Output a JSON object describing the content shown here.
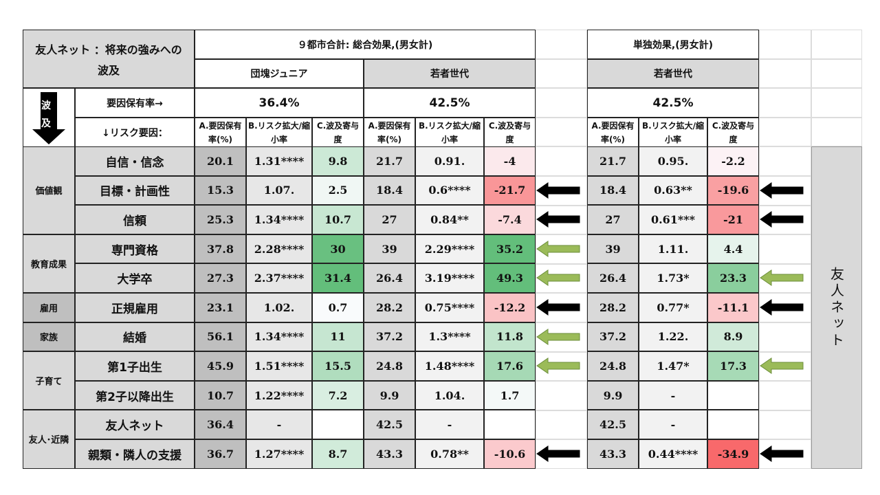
{
  "title": "友人ネット ：将来の強みへの波及",
  "headers": {
    "total_effect": "９都市合計: 総合効果,(男女計)",
    "single_effect": "単独効果,(男女計)",
    "junior": "団塊ジュニア",
    "young": "若者世代",
    "young_single": "若者世代"
  },
  "side_label_left_chars": [
    "波",
    "及"
  ],
  "factor_rate_label": "要因保有率→",
  "risk_factor_label": "↓リスク要因：",
  "rates": {
    "junior": "36.4%",
    "young": "42.5%",
    "young_single": "42.5%"
  },
  "col_headers": {
    "a": "A.要因保有率(%)",
    "b": "B.リスク拡大/縮小率",
    "c": "C.波及寄与度"
  },
  "groups": [
    {
      "label": "価値観"
    },
    {
      "label": "教育成果"
    },
    {
      "label": "雇用"
    },
    {
      "label": "家族"
    },
    {
      "label": "子育て"
    },
    {
      "label": "友人･近隣"
    }
  ],
  "rows": [
    {
      "factor": "自信・信念",
      "j_a": "20.1",
      "j_b": "1.31****",
      "j_c": "9.8",
      "y_a": "21.7",
      "y_b": "0.91.",
      "y_c": "-4",
      "s_a": "21.7",
      "s_b": "0.95.",
      "s_c": "-2.2"
    },
    {
      "factor": "目標・計画性",
      "j_a": "15.3",
      "j_b": "1.07.",
      "j_c": "2.5",
      "y_a": "18.4",
      "y_b": "0.6****",
      "y_c": "-21.7",
      "s_a": "18.4",
      "s_b": "0.63**",
      "s_c": "-19.6"
    },
    {
      "factor": "信頼",
      "j_a": "25.3",
      "j_b": "1.34****",
      "j_c": "10.7",
      "y_a": "27",
      "y_b": "0.84**",
      "y_c": "-7.4",
      "s_a": "27",
      "s_b": "0.61***",
      "s_c": "-21"
    },
    {
      "factor": "専門資格",
      "j_a": "37.8",
      "j_b": "2.28****",
      "j_c": "30",
      "y_a": "39",
      "y_b": "2.29****",
      "y_c": "35.2",
      "s_a": "39",
      "s_b": "1.11.",
      "s_c": "4.4"
    },
    {
      "factor": "大学卒",
      "j_a": "27.3",
      "j_b": "2.37****",
      "j_c": "31.4",
      "y_a": "26.4",
      "y_b": "3.19****",
      "y_c": "49.3",
      "s_a": "26.4",
      "s_b": "1.73*",
      "s_c": "23.3"
    },
    {
      "factor": "正規雇用",
      "j_a": "23.1",
      "j_b": "1.02.",
      "j_c": "0.7",
      "y_a": "28.2",
      "y_b": "0.75****",
      "y_c": "-12.2",
      "s_a": "28.2",
      "s_b": "0.77*",
      "s_c": "-11.1"
    },
    {
      "factor": "結婚",
      "j_a": "56.1",
      "j_b": "1.34****",
      "j_c": "11",
      "y_a": "37.2",
      "y_b": "1.3****",
      "y_c": "11.8",
      "s_a": "37.2",
      "s_b": "1.22.",
      "s_c": "8.9"
    },
    {
      "factor": "第1子出生",
      "j_a": "45.9",
      "j_b": "1.51****",
      "j_c": "15.5",
      "y_a": "24.8",
      "y_b": "1.48****",
      "y_c": "17.6",
      "s_a": "24.8",
      "s_b": "1.47*",
      "s_c": "17.3"
    },
    {
      "factor": "第2子以降出生",
      "j_a": "10.7",
      "j_b": "1.22****",
      "j_c": "7.2",
      "y_a": "9.9",
      "y_b": "1.04.",
      "y_c": "1.7",
      "s_a": "9.9",
      "s_b": "-",
      "s_c": ""
    },
    {
      "factor": "友人ネット",
      "j_a": "36.4",
      "j_b": "-",
      "j_c": "",
      "y_a": "42.5",
      "y_b": "-",
      "y_c": "",
      "s_a": "42.5",
      "s_b": "-",
      "s_c": ""
    },
    {
      "factor": "親類・隣人の支援",
      "j_a": "36.7",
      "j_b": "1.27****",
      "j_c": "8.7",
      "y_a": "43.3",
      "y_b": "0.78**",
      "y_c": "-10.6",
      "s_a": "43.3",
      "s_b": "0.44****",
      "s_c": "-34.9"
    }
  ],
  "colors": {
    "header_gray": "#d9d9d9",
    "a_col_dark": "#bfbfbf",
    "arrow_black": "#000000",
    "arrow_green": "#9bbb59",
    "neg_red": "#f8696b",
    "pos_green": "#63be7b"
  },
  "arrows_mid": [
    "",
    "black",
    "black",
    "green",
    "green",
    "black",
    "green",
    "green",
    "",
    "",
    "black"
  ],
  "arrows_right": [
    "",
    "black",
    "black",
    "",
    "green",
    "black",
    "",
    "green",
    "",
    "",
    "black"
  ],
  "right_vertical_label": "友人ネット"
}
